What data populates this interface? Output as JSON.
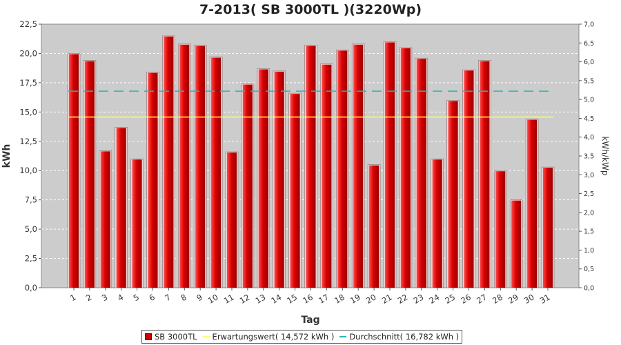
{
  "chart_data": {
    "type": "bar",
    "title": "7-2013( SB 3000TL )(3220Wp)",
    "xlabel": "Tag",
    "ylabel": "kWh",
    "ylabel_right": "kWh/kWp",
    "categories": [
      "1",
      "2",
      "3",
      "4",
      "5",
      "6",
      "7",
      "8",
      "9",
      "10",
      "11",
      "12",
      "13",
      "14",
      "15",
      "16",
      "17",
      "18",
      "19",
      "20",
      "21",
      "22",
      "23",
      "24",
      "25",
      "26",
      "27",
      "28",
      "29",
      "30",
      "31"
    ],
    "series": [
      {
        "name": "SB 3000TL",
        "values": [
          20.0,
          19.4,
          11.7,
          13.7,
          11.0,
          18.4,
          21.5,
          20.8,
          20.7,
          19.7,
          11.6,
          17.4,
          18.7,
          18.5,
          16.6,
          20.7,
          19.1,
          20.3,
          20.8,
          10.5,
          21.0,
          20.5,
          19.6,
          11.0,
          16.0,
          18.6,
          19.4,
          10.0,
          7.5,
          14.4,
          10.3
        ]
      }
    ],
    "ylim": [
      0,
      22.5
    ],
    "yticks": [
      "0,0",
      "2,5",
      "5,0",
      "7,5",
      "10,0",
      "12,5",
      "15,0",
      "17,5",
      "20,0",
      "22,5"
    ],
    "ylim_right": [
      0,
      7.0
    ],
    "yticks_right": [
      "0,0",
      "0,5",
      "1,0",
      "1,5",
      "2,0",
      "2,5",
      "3,0",
      "3,5",
      "4,0",
      "4,5",
      "5,0",
      "5,5",
      "6,0",
      "6,5",
      "7,0"
    ],
    "reference_lines": [
      {
        "name": "Erwartungswert( 14,572 kWh )",
        "value": 14.572,
        "color": "#ffff66",
        "style": "solid"
      },
      {
        "name": "Durchschnitt( 16,782 kWh )",
        "value": 16.782,
        "color": "#2ab5b5",
        "style": "dashed"
      }
    ],
    "grid": true,
    "legend_position": "bottom",
    "colors": {
      "bar": "#cc0000",
      "plot_bg": "#cccccc"
    }
  }
}
